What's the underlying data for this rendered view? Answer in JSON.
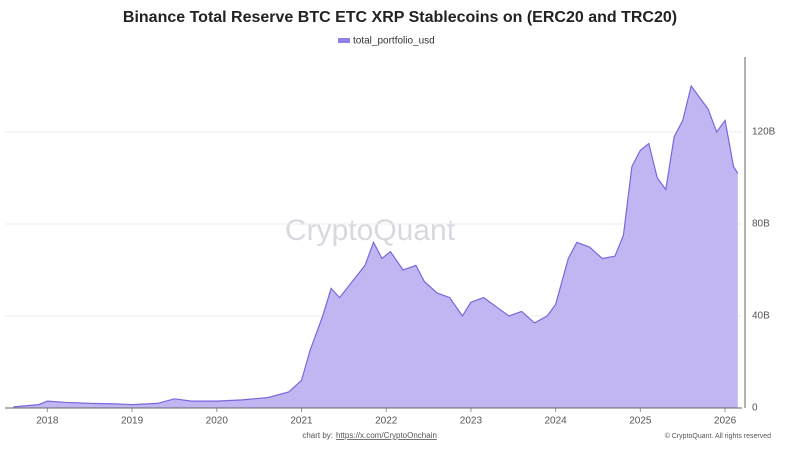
{
  "chart_data": {
    "type": "area",
    "title": "Binance Total Reserve BTC ETC XRP Stablecoins on (ERC20 and TRC20)",
    "watermark": "CryptoQuant",
    "credit_prefix": "chart by:",
    "credit_link": "https://x.com/CryptoOnchain",
    "copyright": "© CryptoQuant. All rights reserved",
    "x": [
      2017.6,
      2017.9,
      2018.0,
      2018.2,
      2018.5,
      2018.8,
      2019.0,
      2019.3,
      2019.5,
      2019.7,
      2020.0,
      2020.3,
      2020.6,
      2020.85,
      2021.0,
      2021.1,
      2021.25,
      2021.35,
      2021.45,
      2021.6,
      2021.75,
      2021.85,
      2021.95,
      2022.05,
      2022.2,
      2022.35,
      2022.45,
      2022.6,
      2022.75,
      2022.9,
      2023.0,
      2023.15,
      2023.3,
      2023.45,
      2023.6,
      2023.75,
      2023.9,
      2024.0,
      2024.15,
      2024.25,
      2024.4,
      2024.55,
      2024.7,
      2024.8,
      2024.9,
      2025.0,
      2025.1,
      2025.2,
      2025.3,
      2025.4,
      2025.5,
      2025.6,
      2025.7,
      2025.8,
      2025.9,
      2026.0,
      2026.05,
      2026.1,
      2026.15
    ],
    "series": [
      {
        "name": "total_portfolio_usd",
        "color": "#7b66dd",
        "fill": "#c2b6f2",
        "values": [
          0.5,
          1.5,
          3,
          2.5,
          2,
          1.8,
          1.5,
          2,
          4,
          3,
          3,
          3.5,
          4.5,
          7,
          12,
          25,
          40,
          52,
          48,
          55,
          62,
          72,
          65,
          68,
          60,
          62,
          55,
          50,
          48,
          40,
          46,
          48,
          44,
          40,
          42,
          37,
          40,
          45,
          65,
          72,
          70,
          65,
          66,
          75,
          105,
          112,
          115,
          100,
          95,
          118,
          125,
          140,
          135,
          130,
          120,
          125,
          115,
          105,
          102
        ]
      }
    ],
    "xlim": [
      2017.5,
      2026.2
    ],
    "xticks": [
      2018,
      2019,
      2020,
      2021,
      2022,
      2023,
      2024,
      2025,
      2026
    ],
    "ylim": [
      0,
      150
    ],
    "yticks": [
      0,
      {
        "value": 40,
        "label": "40B"
      },
      {
        "value": 80,
        "label": "80B"
      },
      {
        "value": 120,
        "label": "120B"
      }
    ],
    "grid": true
  }
}
